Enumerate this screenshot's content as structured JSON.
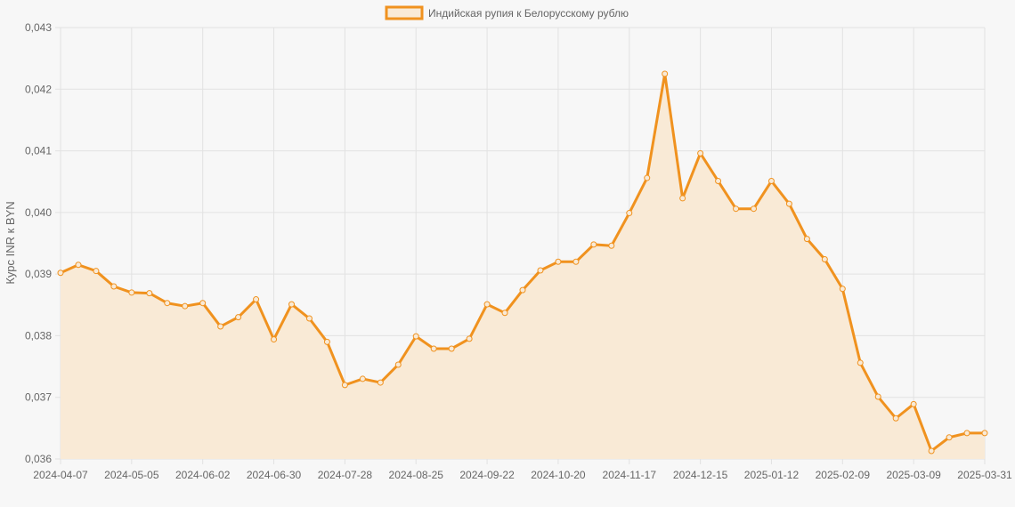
{
  "chart_data": {
    "type": "line",
    "legend": {
      "label": "Индийская рупия к Белорусскому рублю",
      "position": "top"
    },
    "ylabel": "Курс INR к BYN",
    "xlabel": "",
    "ylim": [
      0.036,
      0.043
    ],
    "y_ticks": [
      "0,036",
      "0,037",
      "0,038",
      "0,039",
      "0,040",
      "0,041",
      "0,042",
      "0,043"
    ],
    "x_ticks": [
      "2024-04-07",
      "2024-05-05",
      "2024-06-02",
      "2024-06-30",
      "2024-07-28",
      "2024-08-25",
      "2024-09-22",
      "2024-10-20",
      "2024-11-17",
      "2024-12-15",
      "2025-01-12",
      "2025-02-09",
      "2025-03-09",
      "2025-03-31"
    ],
    "grid": true,
    "colors": {
      "line": "#f0921f",
      "fill": "#f9ead6",
      "grid": "#e2e2e2",
      "background": "#f7f7f7"
    },
    "series": [
      {
        "name": "Индийская рупия к Белорусскому рублю",
        "values": [
          0.03902,
          0.03915,
          0.03905,
          0.0388,
          0.0387,
          0.03869,
          0.03853,
          0.03848,
          0.03853,
          0.03815,
          0.0383,
          0.03859,
          0.03794,
          0.03851,
          0.03828,
          0.0379,
          0.0372,
          0.0373,
          0.03724,
          0.03753,
          0.03799,
          0.03779,
          0.03779,
          0.03795,
          0.03851,
          0.03837,
          0.03874,
          0.03906,
          0.0392,
          0.0392,
          0.03948,
          0.03946,
          0.03999,
          0.04056,
          0.04225,
          0.04023,
          0.04096,
          0.04051,
          0.04006,
          0.04006,
          0.04051,
          0.04014,
          0.03957,
          0.03924,
          0.03876,
          0.03756,
          0.03701,
          0.03666,
          0.03689,
          0.03613,
          0.03635,
          0.03642,
          0.03642
        ]
      }
    ]
  }
}
